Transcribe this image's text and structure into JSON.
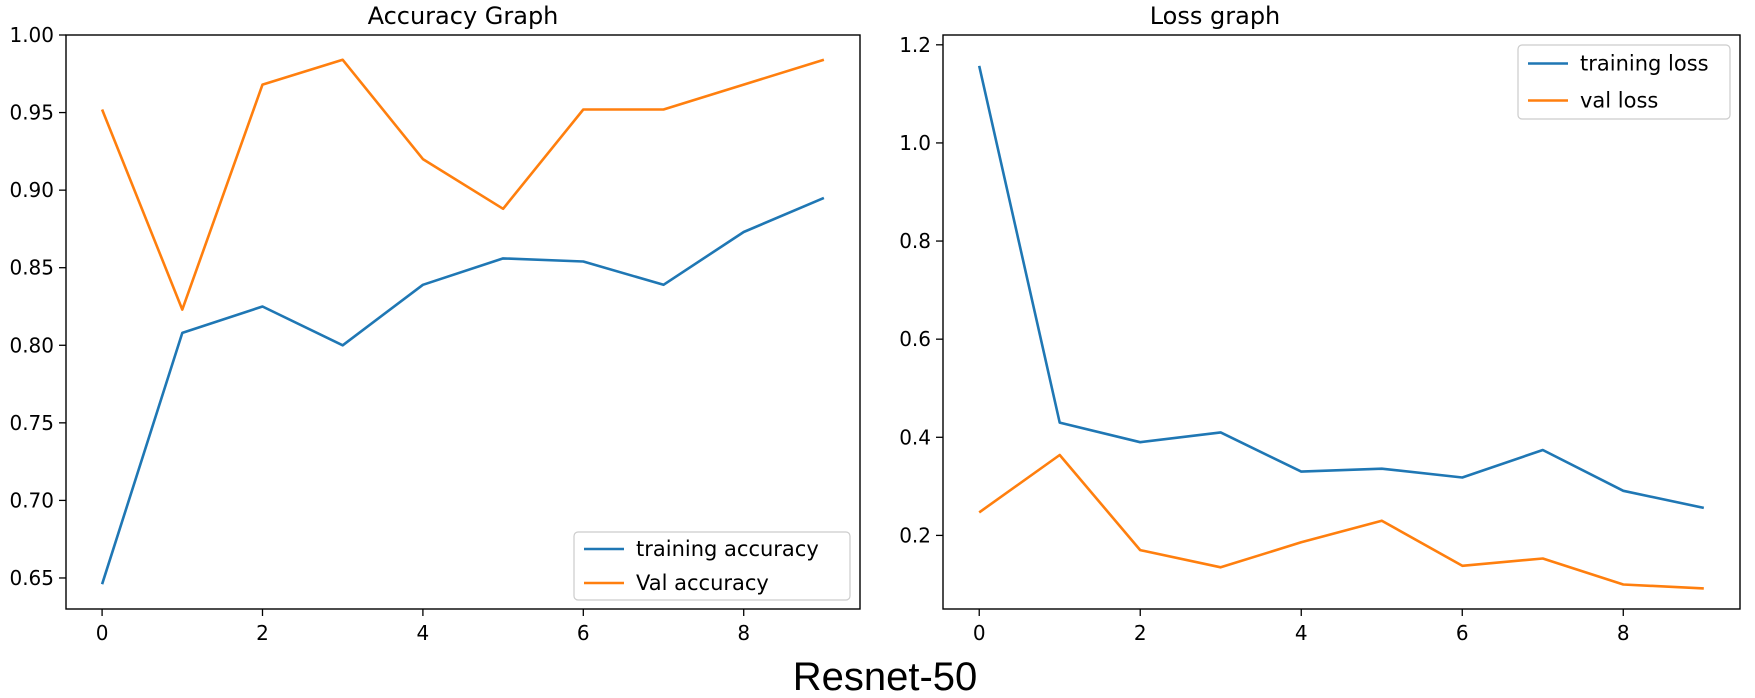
{
  "colors": {
    "training": "#1f77b4",
    "validation": "#ff7f0e"
  },
  "caption": "Resnet-50",
  "chart_data": [
    {
      "type": "line",
      "title": "Accuracy Graph",
      "xlabel": "",
      "ylabel": "",
      "x": [
        0,
        1,
        2,
        3,
        4,
        5,
        6,
        7,
        8,
        9
      ],
      "xlim": [
        -0.45,
        9.45
      ],
      "ylim": [
        0.63,
        1.0
      ],
      "xticks": [
        0,
        2,
        4,
        6,
        8
      ],
      "xtick_labels": [
        "0",
        "2",
        "4",
        "6",
        "8"
      ],
      "yticks": [
        0.65,
        0.7,
        0.75,
        0.8,
        0.85,
        0.9,
        0.95,
        1.0
      ],
      "ytick_labels": [
        "0.65",
        "0.70",
        "0.75",
        "0.80",
        "0.85",
        "0.90",
        "0.95",
        "1.00"
      ],
      "legend_position": "lower-right",
      "series": [
        {
          "name": "training accuracy",
          "color_key": "training",
          "values": [
            0.646,
            0.808,
            0.825,
            0.8,
            0.839,
            0.856,
            0.854,
            0.839,
            0.873,
            0.895
          ]
        },
        {
          "name": "Val accuracy",
          "color_key": "validation",
          "values": [
            0.952,
            0.823,
            0.968,
            0.984,
            0.92,
            0.888,
            0.952,
            0.952,
            0.968,
            0.984
          ]
        }
      ]
    },
    {
      "type": "line",
      "title": "Loss graph",
      "xlabel": "",
      "ylabel": "",
      "x": [
        0,
        1,
        2,
        3,
        4,
        5,
        6,
        7,
        8,
        9
      ],
      "xlim": [
        -0.45,
        9.45
      ],
      "ylim": [
        0.05,
        1.22
      ],
      "xticks": [
        0,
        2,
        4,
        6,
        8
      ],
      "xtick_labels": [
        "0",
        "2",
        "4",
        "6",
        "8"
      ],
      "yticks": [
        0.2,
        0.4,
        0.6,
        0.8,
        1.0,
        1.2
      ],
      "ytick_labels": [
        "0.2",
        "0.4",
        "0.6",
        "0.8",
        "1.0",
        "1.2"
      ],
      "legend_position": "upper-right",
      "series": [
        {
          "name": "training loss",
          "color_key": "training",
          "values": [
            1.157,
            0.43,
            0.39,
            0.41,
            0.33,
            0.336,
            0.318,
            0.374,
            0.291,
            0.256
          ]
        },
        {
          "name": "val loss",
          "color_key": "validation",
          "values": [
            0.247,
            0.364,
            0.17,
            0.135,
            0.186,
            0.23,
            0.138,
            0.153,
            0.1,
            0.092
          ]
        }
      ]
    }
  ]
}
